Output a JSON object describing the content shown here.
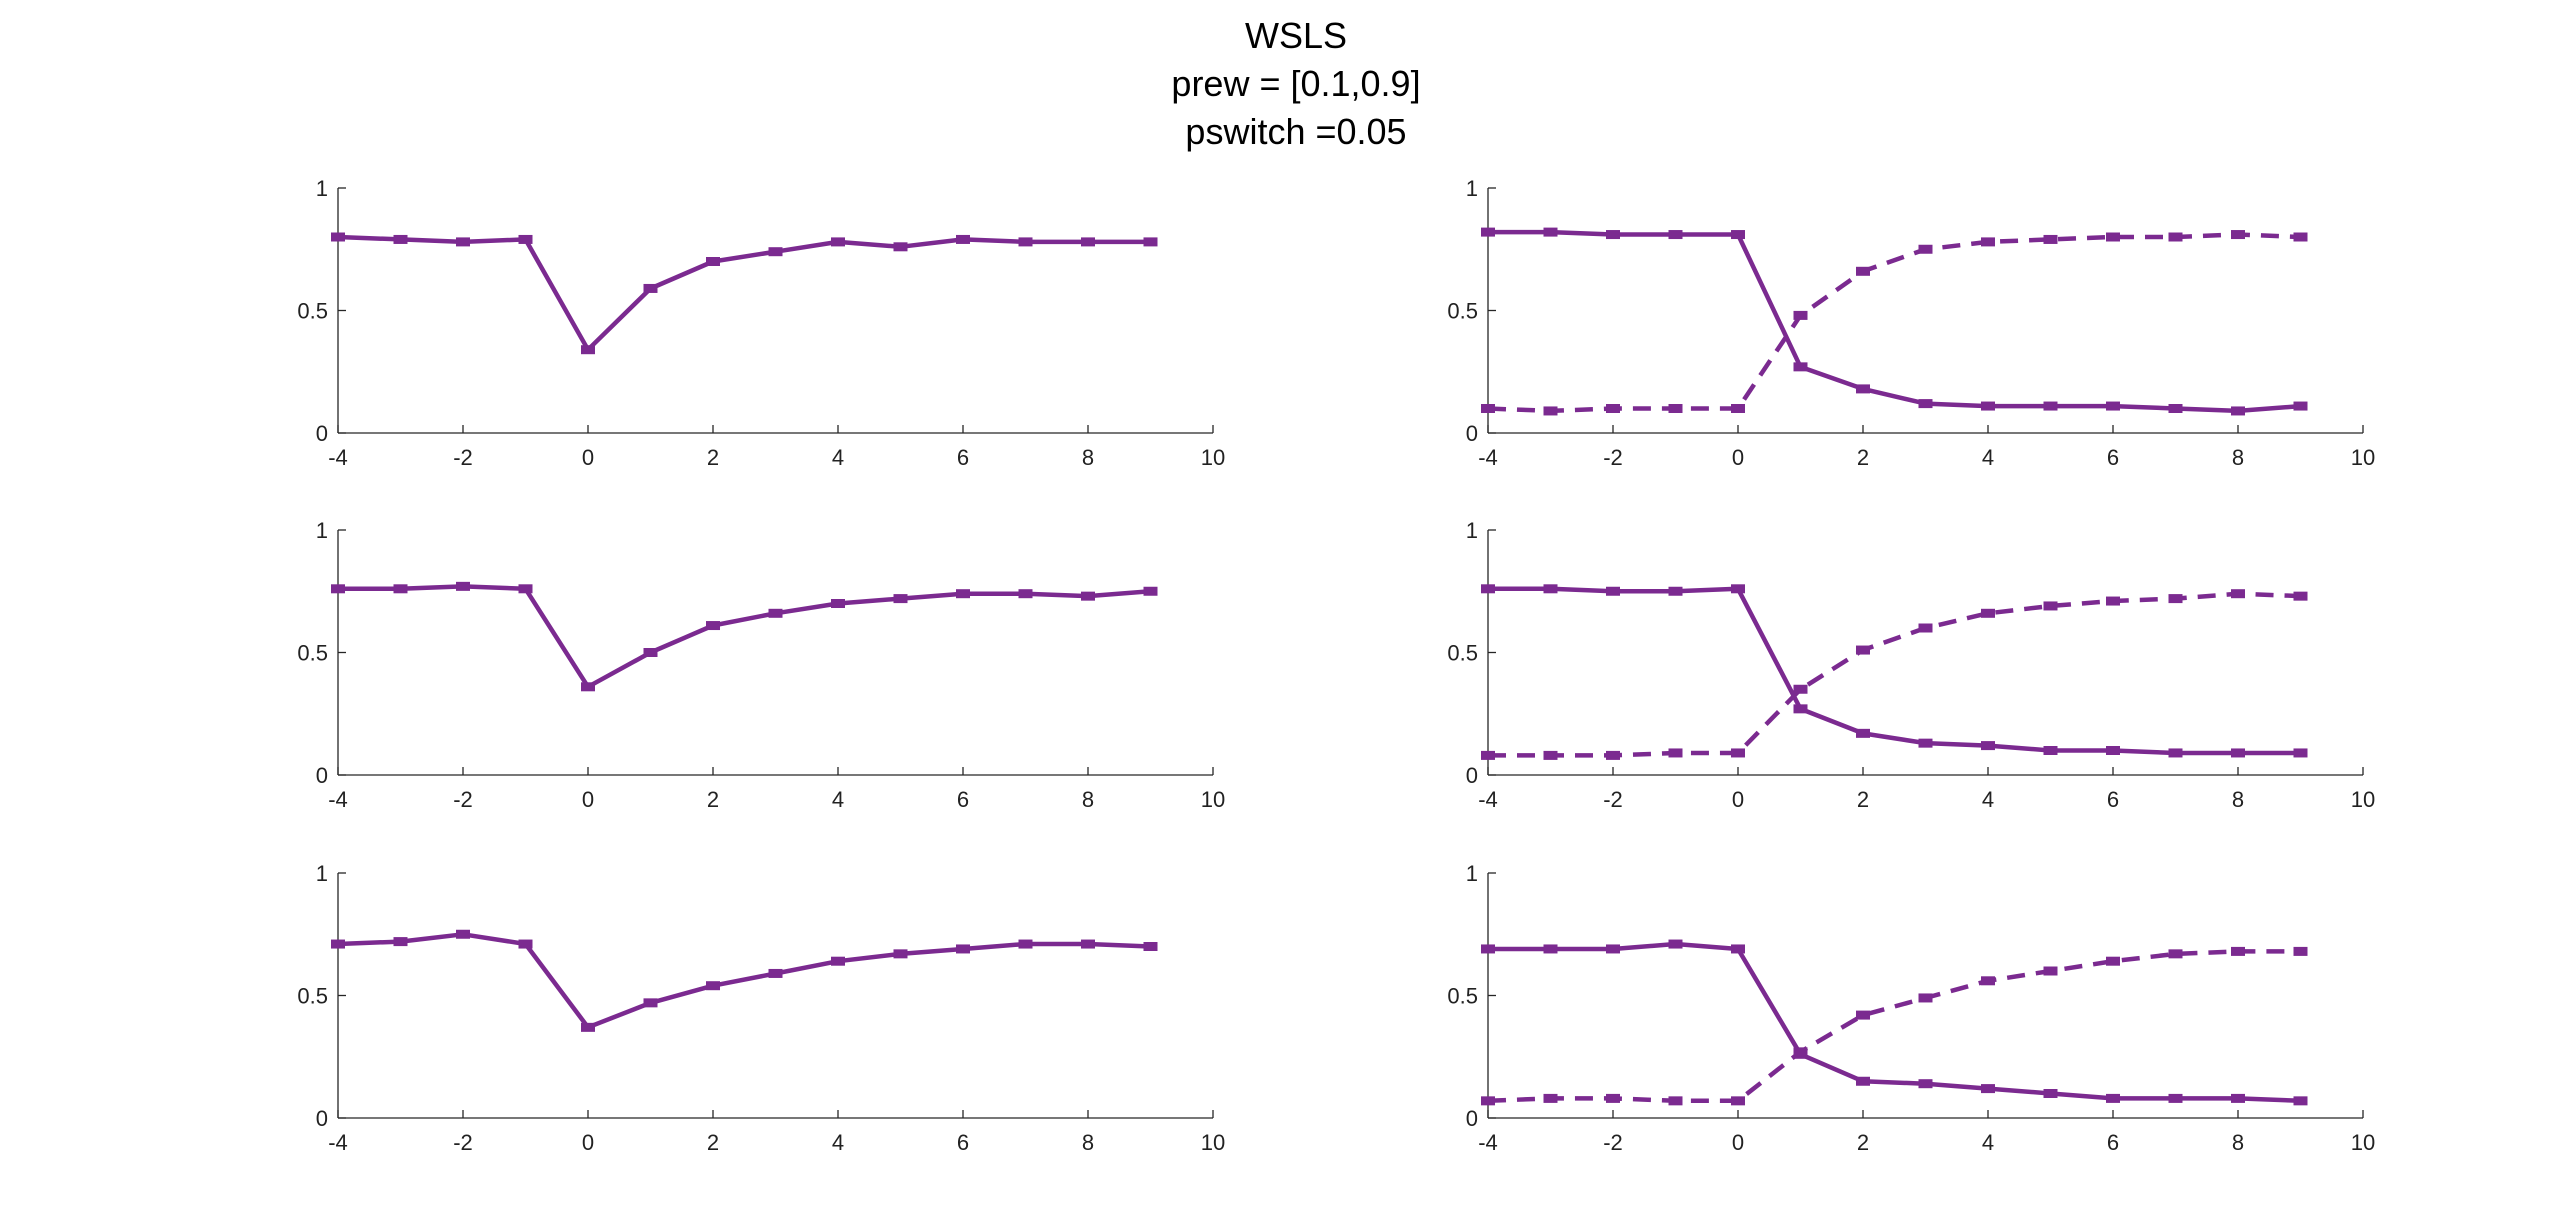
{
  "figure": {
    "title_lines": [
      "WSLS",
      "prew = [0.1,0.9]",
      "pswitch =0.05"
    ],
    "series_color": "#7b2a90",
    "background": "#ffffff"
  },
  "chart_data": [
    {
      "type": "line",
      "panel": "row1-left",
      "x": [
        -4,
        -3,
        -2,
        -1,
        0,
        1,
        2,
        3,
        4,
        5,
        6,
        7,
        8,
        9
      ],
      "xlim": [
        -4,
        10
      ],
      "ylim": [
        0,
        1
      ],
      "xticks": [
        "-4",
        "-2",
        "0",
        "2",
        "4",
        "6",
        "8",
        "10"
      ],
      "yticks": [
        "0",
        "0.5",
        "1"
      ],
      "series": [
        {
          "style": "solid",
          "values": [
            0.8,
            0.79,
            0.78,
            0.79,
            0.34,
            0.59,
            0.7,
            0.74,
            0.78,
            0.76,
            0.79,
            0.78,
            0.78,
            0.78
          ]
        }
      ]
    },
    {
      "type": "line",
      "panel": "row1-right",
      "x": [
        -4,
        -3,
        -2,
        -1,
        0,
        1,
        2,
        3,
        4,
        5,
        6,
        7,
        8,
        9
      ],
      "xlim": [
        -4,
        10
      ],
      "ylim": [
        0,
        1
      ],
      "xticks": [
        "-4",
        "-2",
        "0",
        "2",
        "4",
        "6",
        "8",
        "10"
      ],
      "yticks": [
        "0",
        "0.5",
        "1"
      ],
      "series": [
        {
          "style": "solid",
          "values": [
            0.82,
            0.82,
            0.81,
            0.81,
            0.81,
            0.27,
            0.18,
            0.12,
            0.11,
            0.11,
            0.11,
            0.1,
            0.09,
            0.11
          ]
        },
        {
          "style": "dashed",
          "values": [
            0.1,
            0.09,
            0.1,
            0.1,
            0.1,
            0.48,
            0.66,
            0.75,
            0.78,
            0.79,
            0.8,
            0.8,
            0.81,
            0.8
          ]
        }
      ]
    },
    {
      "type": "line",
      "panel": "row2-left",
      "x": [
        -4,
        -3,
        -2,
        -1,
        0,
        1,
        2,
        3,
        4,
        5,
        6,
        7,
        8,
        9
      ],
      "xlim": [
        -4,
        10
      ],
      "ylim": [
        0,
        1
      ],
      "xticks": [
        "-4",
        "-2",
        "0",
        "2",
        "4",
        "6",
        "8",
        "10"
      ],
      "yticks": [
        "0",
        "0.5",
        "1"
      ],
      "series": [
        {
          "style": "solid",
          "values": [
            0.76,
            0.76,
            0.77,
            0.76,
            0.36,
            0.5,
            0.61,
            0.66,
            0.7,
            0.72,
            0.74,
            0.74,
            0.73,
            0.75
          ]
        }
      ]
    },
    {
      "type": "line",
      "panel": "row2-right",
      "x": [
        -4,
        -3,
        -2,
        -1,
        0,
        1,
        2,
        3,
        4,
        5,
        6,
        7,
        8,
        9
      ],
      "xlim": [
        -4,
        10
      ],
      "ylim": [
        0,
        1
      ],
      "xticks": [
        "-4",
        "-2",
        "0",
        "2",
        "4",
        "6",
        "8",
        "10"
      ],
      "yticks": [
        "0",
        "0.5",
        "1"
      ],
      "series": [
        {
          "style": "solid",
          "values": [
            0.76,
            0.76,
            0.75,
            0.75,
            0.76,
            0.27,
            0.17,
            0.13,
            0.12,
            0.1,
            0.1,
            0.09,
            0.09,
            0.09
          ]
        },
        {
          "style": "dashed",
          "values": [
            0.08,
            0.08,
            0.08,
            0.09,
            0.09,
            0.35,
            0.51,
            0.6,
            0.66,
            0.69,
            0.71,
            0.72,
            0.74,
            0.73
          ]
        }
      ]
    },
    {
      "type": "line",
      "panel": "row3-left",
      "x": [
        -4,
        -3,
        -2,
        -1,
        0,
        1,
        2,
        3,
        4,
        5,
        6,
        7,
        8,
        9
      ],
      "xlim": [
        -4,
        10
      ],
      "ylim": [
        0,
        1
      ],
      "xticks": [
        "-4",
        "-2",
        "0",
        "2",
        "4",
        "6",
        "8",
        "10"
      ],
      "yticks": [
        "0",
        "0.5",
        "1"
      ],
      "series": [
        {
          "style": "solid",
          "values": [
            0.71,
            0.72,
            0.75,
            0.71,
            0.37,
            0.47,
            0.54,
            0.59,
            0.64,
            0.67,
            0.69,
            0.71,
            0.71,
            0.7
          ]
        }
      ]
    },
    {
      "type": "line",
      "panel": "row3-right",
      "x": [
        -4,
        -3,
        -2,
        -1,
        0,
        1,
        2,
        3,
        4,
        5,
        6,
        7,
        8,
        9
      ],
      "xlim": [
        -4,
        10
      ],
      "ylim": [
        0,
        1
      ],
      "xticks": [
        "-4",
        "-2",
        "0",
        "2",
        "4",
        "6",
        "8",
        "10"
      ],
      "yticks": [
        "0",
        "0.5",
        "1"
      ],
      "series": [
        {
          "style": "solid",
          "values": [
            0.69,
            0.69,
            0.69,
            0.71,
            0.69,
            0.26,
            0.15,
            0.14,
            0.12,
            0.1,
            0.08,
            0.08,
            0.08,
            0.07
          ]
        },
        {
          "style": "dashed",
          "values": [
            0.07,
            0.08,
            0.08,
            0.07,
            0.07,
            0.27,
            0.42,
            0.49,
            0.56,
            0.6,
            0.64,
            0.67,
            0.68,
            0.68
          ]
        }
      ]
    }
  ]
}
